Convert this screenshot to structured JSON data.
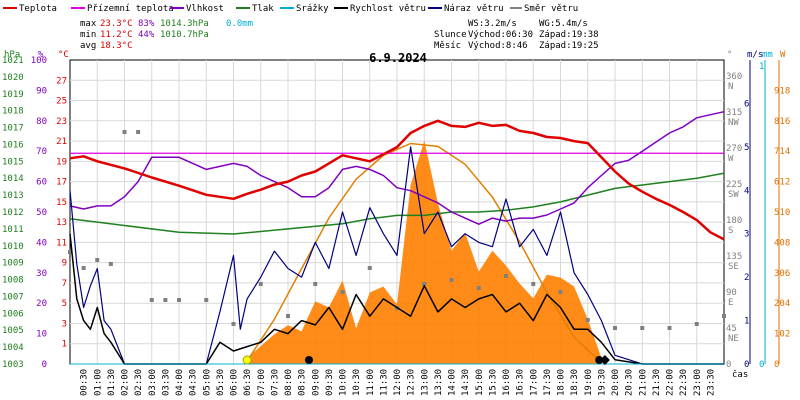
{
  "chart_data": {
    "type": "line",
    "title": "6.9.2024",
    "xlabel": "čas",
    "x_labels": [
      "00:30",
      "01:00",
      "01:30",
      "02:00",
      "02:30",
      "03:00",
      "03:30",
      "04:00",
      "04:30",
      "05:00",
      "05:30",
      "06:00",
      "06:30",
      "07:00",
      "07:30",
      "08:00",
      "08:30",
      "09:00",
      "09:30",
      "10:00",
      "10:30",
      "11:00",
      "11:30",
      "12:00",
      "12:30",
      "13:00",
      "13:30",
      "14:00",
      "14:30",
      "15:00",
      "15:30",
      "16:00",
      "16:30",
      "17:00",
      "17:30",
      "18:00",
      "18:30",
      "19:00",
      "19:30",
      "20:00",
      "20:30",
      "21:00",
      "21:30",
      "22:00",
      "22:30",
      "23:00",
      "23:30"
    ],
    "legend": [
      {
        "name": "Teplota",
        "color": "#e00000"
      },
      {
        "name": "Přízemní teplota",
        "color": "#e000e0"
      },
      {
        "name": "Vlhkost",
        "color": "#8000c0"
      },
      {
        "name": "Tlak",
        "color": "#208020"
      },
      {
        "name": "Srážky",
        "color": "#00b0d0"
      },
      {
        "name": "Rychlost větru",
        "color": "#000000"
      },
      {
        "name": "Náraz větru",
        "color": "#000080"
      },
      {
        "name": "Směr větru",
        "color": "#808080"
      }
    ],
    "stats": {
      "max_label": "max",
      "min_label": "min",
      "avg_label": "avg",
      "max_temp": "23.3°C",
      "max_hum": "83%",
      "max_press": "1014.3hPa",
      "max_rain": "0.0mm",
      "min_temp": "11.2°C",
      "min_hum": "44%",
      "min_press": "1010.7hPa",
      "avg_temp": "18.3°C"
    },
    "wind_info": {
      "ws": "WS:3.2m/s",
      "wg": "WG:5.4m/s",
      "sun_label": "Slunce",
      "sunrise": "Východ:06:30",
      "sunset": "Západ:19:38",
      "moon_label": "Měsíc",
      "moonrise": "Východ:8:46",
      "moonset": "Západ:19:25"
    },
    "axis_units": {
      "pressure": "hPa",
      "humidity": "%",
      "temperature": "°C",
      "direction": "°",
      "wind": "m/s",
      "rain": "mm",
      "solar": "W"
    },
    "pressure_axis": {
      "min": 1003,
      "max": 1021,
      "ticks": [
        "1021",
        "1020",
        "1019",
        "1018",
        "1017",
        "1016",
        "1015",
        "1014",
        "1013",
        "1012",
        "1011",
        "1010",
        "1009",
        "1008",
        "1007",
        "1006",
        "1005",
        "1004",
        "1003"
      ]
    },
    "humidity_axis": {
      "min": 0,
      "max": 100,
      "ticks": [
        "100",
        "90",
        "80",
        "70",
        "60",
        "50",
        "40",
        "30",
        "20",
        "10",
        "0"
      ]
    },
    "temperature_axis": {
      "min": -1,
      "max": 29,
      "ticks": [
        "27",
        "25",
        "23",
        "21",
        "19",
        "17",
        "15",
        "13",
        "11",
        "9",
        "7",
        "5",
        "3",
        "1"
      ]
    },
    "direction_axis": {
      "min": 0,
      "max": 380,
      "ticks": [
        "360",
        "315",
        "270",
        "225",
        "180",
        "135",
        "90",
        "45",
        "0"
      ],
      "labels": [
        "N",
        "NW",
        "W",
        "SW",
        "S",
        "SE",
        "E",
        "NE",
        ""
      ]
    },
    "wind_axis": {
      "min": 0,
      "max": 7,
      "ticks": [
        "6",
        "5",
        "4",
        "3",
        "2",
        "1",
        "0"
      ]
    },
    "rain_axis": {
      "ticks": [
        "1",
        "0"
      ]
    },
    "solar_axis": {
      "min": 0,
      "max": 1020,
      "ticks": [
        "918",
        "816",
        "714",
        "612",
        "510",
        "408",
        "306",
        "204",
        "102",
        "0"
      ]
    },
    "reference_line": {
      "name": "Přízemní teplota reference",
      "value_celsius": 19.8
    },
    "series": {
      "temperature": {
        "unit": "°C",
        "x": [
          0,
          0.5,
          1,
          2,
          3,
          4,
          5,
          6,
          6.5,
          7,
          7.5,
          8,
          8.5,
          9,
          9.5,
          10,
          10.5,
          11,
          11.5,
          12,
          12.5,
          13,
          13.5,
          14,
          14.5,
          15,
          15.5,
          16,
          16.5,
          17,
          17.5,
          18,
          18.5,
          19,
          19.5,
          20,
          20.5,
          21,
          21.5,
          22,
          22.5,
          23,
          23.5,
          24
        ],
        "y": [
          19.3,
          19.5,
          19,
          18.3,
          17.4,
          16.6,
          15.7,
          15.3,
          15.8,
          16.2,
          16.7,
          17.0,
          17.6,
          18.0,
          18.8,
          19.6,
          19.3,
          19.0,
          19.7,
          20.4,
          21.8,
          22.5,
          23.0,
          22.5,
          22.4,
          22.8,
          22.5,
          22.6,
          22.0,
          21.8,
          21.4,
          21.3,
          21.0,
          20.8,
          19.4,
          18.0,
          16.8,
          16.0,
          15.3,
          14.7,
          14.0,
          13.2,
          12.0,
          11.3
        ]
      },
      "humidity": {
        "unit": "%",
        "x": [
          0,
          0.5,
          1,
          1.5,
          2,
          2.5,
          3,
          4,
          5,
          6,
          6.5,
          7,
          7.5,
          8,
          8.5,
          9,
          9.5,
          10,
          10.5,
          11,
          11.5,
          12,
          12.5,
          13,
          13.5,
          14,
          14.5,
          15,
          15.5,
          16,
          16.5,
          17,
          17.5,
          18,
          18.5,
          19,
          19.5,
          20,
          20.5,
          21,
          21.5,
          22,
          22.5,
          23,
          23.5,
          24
        ],
        "y": [
          52,
          51,
          52,
          52,
          55,
          60,
          68,
          68,
          64,
          66,
          65,
          62,
          60,
          58,
          55,
          55,
          58,
          64,
          65,
          64,
          62,
          58,
          57,
          55,
          53,
          50,
          48,
          46,
          48,
          47,
          48,
          48,
          49,
          51,
          53,
          58,
          62,
          66,
          67,
          70,
          73,
          76,
          78,
          81,
          82,
          83
        ]
      },
      "pressure": {
        "unit": "hPa",
        "x": [
          0,
          2,
          4,
          6,
          8,
          10,
          11,
          12,
          13,
          14,
          15,
          16,
          17,
          18,
          19,
          20,
          21,
          22,
          23,
          24
        ],
        "y": [
          1011.6,
          1011.2,
          1010.8,
          1010.7,
          1011.0,
          1011.3,
          1011.6,
          1011.8,
          1011.8,
          1012.0,
          1012.0,
          1012.1,
          1012.3,
          1012.6,
          1013.0,
          1013.4,
          1013.6,
          1013.8,
          1014.0,
          1014.3
        ]
      },
      "wind_speed": {
        "unit": "m/s",
        "x": [
          0,
          0.25,
          0.5,
          0.75,
          1,
          1.25,
          1.5,
          2,
          3,
          4,
          5,
          5.5,
          6,
          6.5,
          7,
          7.5,
          8,
          8.5,
          9,
          9.5,
          10,
          10.5,
          11,
          11.5,
          12,
          12.5,
          13,
          13.5,
          14,
          14.5,
          15,
          15.5,
          16,
          16.5,
          17,
          17.5,
          18,
          18.5,
          19,
          19.5,
          20,
          21,
          22,
          23,
          24
        ],
        "y": [
          3,
          1.5,
          1,
          0.8,
          1.3,
          0.7,
          0.5,
          0,
          0,
          0,
          0,
          0.5,
          0.3,
          0.4,
          0.5,
          0.8,
          0.7,
          1,
          0.9,
          1.3,
          0.8,
          1.6,
          1.1,
          1.5,
          1.3,
          1.1,
          1.8,
          1.2,
          1.5,
          1.3,
          1.5,
          1.6,
          1.2,
          1.4,
          1.0,
          1.6,
          1.3,
          0.8,
          0.8,
          0.5,
          0.1,
          0,
          0,
          0,
          0
        ]
      },
      "wind_gust": {
        "unit": "m/s",
        "x": [
          0,
          0.25,
          0.5,
          0.75,
          1,
          1.25,
          1.5,
          2,
          3,
          4,
          5,
          5.5,
          6,
          6.25,
          6.5,
          7,
          7.5,
          8,
          8.5,
          9,
          9.5,
          10,
          10.5,
          11,
          11.5,
          12,
          12.5,
          13,
          13.5,
          14,
          14.5,
          15,
          15.5,
          16,
          16.5,
          17,
          17.5,
          18,
          18.5,
          19,
          19.5,
          20,
          21,
          22,
          23,
          24
        ],
        "y": [
          4,
          2.3,
          1.3,
          1.8,
          2.2,
          1.0,
          0.8,
          0,
          0,
          0,
          0,
          1.2,
          2.5,
          0.8,
          1.5,
          2.0,
          2.6,
          2.2,
          2.0,
          2.8,
          2.2,
          3.5,
          2.5,
          3.6,
          3.0,
          2.5,
          5.0,
          3.0,
          3.5,
          2.7,
          3.0,
          2.8,
          2.7,
          3.8,
          2.7,
          3.1,
          2.5,
          3.5,
          2.1,
          1.6,
          1.0,
          0.2,
          0,
          0,
          0,
          0
        ]
      },
      "solar_radiation": {
        "unit": "W",
        "x": [
          6.5,
          7,
          7.5,
          8,
          8.5,
          9,
          9.5,
          10,
          10.5,
          11,
          11.5,
          12,
          12.5,
          13,
          13.5,
          14,
          14.5,
          15,
          15.5,
          16,
          16.5,
          17,
          17.5,
          18,
          18.5,
          19,
          19.5
        ],
        "y": [
          20,
          60,
          100,
          130,
          110,
          210,
          190,
          280,
          120,
          240,
          260,
          200,
          600,
          750,
          540,
          380,
          440,
          310,
          380,
          330,
          270,
          220,
          300,
          290,
          260,
          150,
          20
        ]
      },
      "solar_model": {
        "unit": "W",
        "x": [
          6.5,
          7.5,
          8.5,
          9.5,
          10.5,
          11.5,
          12.5,
          13.5,
          14.5,
          15.5,
          16.5,
          17.5,
          18.5,
          19.5
        ],
        "y": [
          10,
          150,
          320,
          490,
          620,
          700,
          740,
          730,
          670,
          560,
          410,
          240,
          90,
          5
        ]
      },
      "wind_direction": {
        "unit": "°",
        "x": [
          0,
          0.5,
          1,
          1.5,
          2,
          2.5,
          3,
          3.5,
          4,
          5,
          6,
          7,
          8,
          9,
          10,
          11,
          12,
          13,
          14,
          15,
          16,
          17,
          18,
          19,
          20,
          21,
          22,
          23,
          24
        ],
        "y": [
          140,
          120,
          130,
          125,
          290,
          290,
          80,
          80,
          80,
          80,
          50,
          100,
          60,
          100,
          90,
          120,
          70,
          100,
          105,
          95,
          110,
          100,
          90,
          55,
          45,
          45,
          45,
          50,
          60
        ]
      },
      "rain": {
        "unit": "mm",
        "x": [
          0,
          24
        ],
        "y": [
          0,
          0
        ]
      }
    },
    "markers": [
      {
        "name": "sunrise",
        "time": 6.5
      },
      {
        "name": "moonrise",
        "time": 8.77
      },
      {
        "name": "moonset",
        "time": 19.42
      },
      {
        "name": "sunset",
        "time": 19.63
      }
    ]
  }
}
